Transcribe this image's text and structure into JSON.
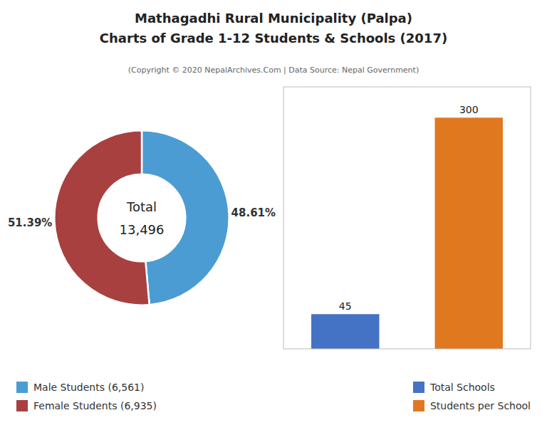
{
  "chart_data": [
    {
      "type": "pie",
      "title": [
        "Mathagadhi Rural Municipality (Palpa)",
        "Charts of Grade 1-12 Students & Schools (2017)"
      ],
      "subtitle": "(Copyright © 2020 NepalArchives.Com | Data Source: Nepal Government)",
      "categories": [
        "Male Students (6,561)",
        "Female Students (6,935)"
      ],
      "values": [
        48.61,
        51.39
      ],
      "value_labels": [
        "48.61%",
        "51.39%"
      ],
      "data_labels": true,
      "colors": [
        "#4b9cd3",
        "#a84040"
      ],
      "annotations": [
        "Total",
        "13,496"
      ],
      "legend": "lower left"
    },
    {
      "type": "bar",
      "categories": [
        "Total Schools",
        "Students per School"
      ],
      "values": [
        45,
        300
      ],
      "colors": [
        "#4472c4",
        "#e07820"
      ],
      "ylim": [
        0,
        340
      ],
      "tick_labels": false,
      "data_labels": true,
      "legend": "lower right"
    }
  ]
}
